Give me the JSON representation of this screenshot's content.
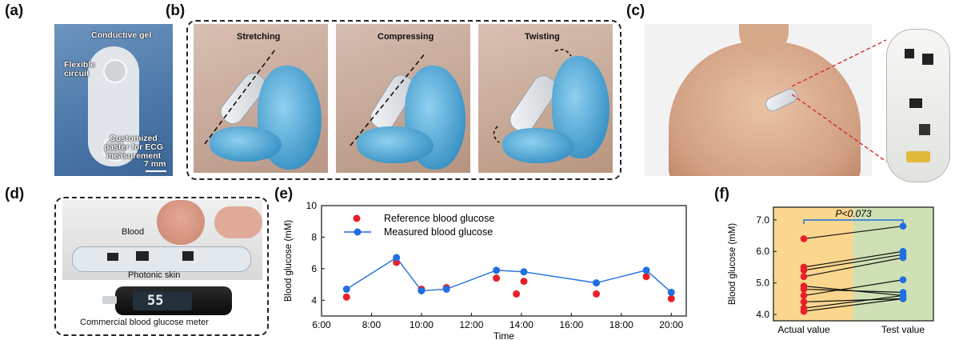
{
  "panels": {
    "a": {
      "label": "(a)",
      "annotations": [
        "Conductive gel",
        "Flexible circuit",
        "Customized paster for ECG measurement"
      ],
      "scale_bar": "7 mm"
    },
    "b": {
      "label": "(b)",
      "subtitles": [
        "Stretching",
        "Compressing",
        "Twisting"
      ]
    },
    "c": {
      "label": "(c)"
    },
    "d": {
      "label": "(d)",
      "annotations": [
        "Blood",
        "Photonic skin"
      ],
      "meter_reading": "55",
      "caption": "Commercial blood glucose meter"
    },
    "e": {
      "label": "(e)"
    },
    "f": {
      "label": "(f)"
    }
  },
  "chart_data": [
    {
      "type": "scatter",
      "panel": "e",
      "xlabel": "Time",
      "ylabel": "Blood glucose (mM)",
      "x_ticks": [
        "6:00",
        "8:00",
        "10:00",
        "12:00",
        "14:00",
        "16:00",
        "18:00",
        "20:00"
      ],
      "y_ticks": [
        "4",
        "6",
        "8",
        "10"
      ],
      "xlim": [
        6,
        20.6
      ],
      "ylim": [
        3,
        10
      ],
      "legend_placement": "top-left",
      "series": [
        {
          "name": "Reference blood glucose",
          "color": "#e8202a",
          "marker": "dot",
          "points": [
            {
              "x": 7.0,
              "y": 4.2
            },
            {
              "x": 9.0,
              "y": 6.4
            },
            {
              "x": 10.0,
              "y": 4.7
            },
            {
              "x": 11.0,
              "y": 4.8
            },
            {
              "x": 13.0,
              "y": 5.4
            },
            {
              "x": 13.8,
              "y": 4.4
            },
            {
              "x": 14.1,
              "y": 5.2
            },
            {
              "x": 17.0,
              "y": 4.4
            },
            {
              "x": 19.0,
              "y": 5.5
            },
            {
              "x": 20.0,
              "y": 4.1
            }
          ]
        },
        {
          "name": "Measured blood glucose",
          "color": "#1f6fe0",
          "marker": "dot-line",
          "points": [
            {
              "x": 7.0,
              "y": 4.7
            },
            {
              "x": 9.0,
              "y": 6.7
            },
            {
              "x": 10.0,
              "y": 4.6
            },
            {
              "x": 11.0,
              "y": 4.7
            },
            {
              "x": 13.0,
              "y": 5.9
            },
            {
              "x": 14.1,
              "y": 5.8
            },
            {
              "x": 17.0,
              "y": 5.1
            },
            {
              "x": 19.0,
              "y": 5.9
            },
            {
              "x": 20.0,
              "y": 4.5
            }
          ]
        }
      ]
    },
    {
      "type": "scatter",
      "panel": "f",
      "ylabel": "Blood glucose (mM)",
      "categories": [
        "Actual value",
        "Test value"
      ],
      "y_ticks": [
        "4.0",
        "5.0",
        "6.0",
        "7.0"
      ],
      "ylim": [
        3.8,
        7.4
      ],
      "annotation": "P<0.073",
      "background_colors": [
        "#fbd68e",
        "#cfe0b4"
      ],
      "series": [
        {
          "name": "",
          "color": "#e8202a",
          "values": [
            6.4,
            5.5,
            5.4,
            5.2,
            4.9,
            4.8,
            4.6,
            4.4,
            4.2,
            4.1
          ]
        },
        {
          "name": "",
          "color": "#1f6fe0",
          "values": [
            6.8,
            6.0,
            5.9,
            5.8,
            5.1,
            4.7,
            4.6,
            4.6,
            4.5,
            4.5
          ]
        }
      ],
      "pairs": [
        [
          6.4,
          6.8
        ],
        [
          5.5,
          6.0
        ],
        [
          5.4,
          5.9
        ],
        [
          5.2,
          5.8
        ],
        [
          4.9,
          4.6
        ],
        [
          4.8,
          4.7
        ],
        [
          4.6,
          5.1
        ],
        [
          4.4,
          4.5
        ],
        [
          4.2,
          4.6
        ],
        [
          4.1,
          4.5
        ]
      ]
    }
  ]
}
